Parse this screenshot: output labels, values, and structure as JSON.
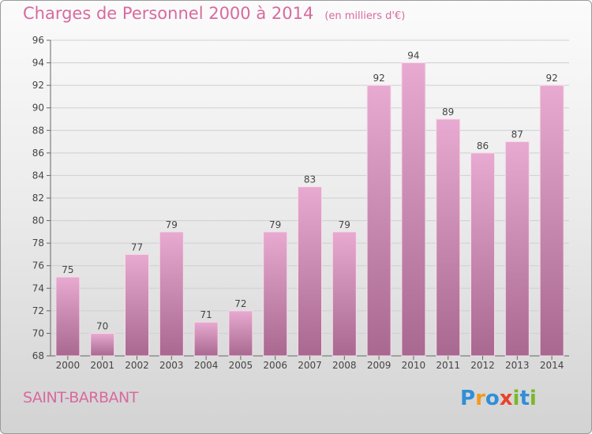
{
  "title": "Charges de Personnel 2000 à 2014",
  "unit": "(en milliers d'€)",
  "place": "SAINT-BARBANT",
  "logo": {
    "text": "Proxiti",
    "letters": [
      "P",
      "r",
      "o",
      "x",
      "i",
      "t",
      "i"
    ],
    "colors": [
      "#2f8fd8",
      "#f29a1e",
      "#2f8fd8",
      "#e8432a",
      "#7ab829",
      "#2f8fd8",
      "#7ab829"
    ]
  },
  "colors": {
    "title": "#d86a9e",
    "bar_top": "#e8aad0",
    "bar_bottom": "#a86890",
    "grid": "#cfcfcf"
  },
  "chart_data": {
    "type": "bar",
    "categories": [
      "2000",
      "2001",
      "2002",
      "2003",
      "2004",
      "2005",
      "2006",
      "2007",
      "2008",
      "2009",
      "2010",
      "2011",
      "2012",
      "2013",
      "2014"
    ],
    "values": [
      75,
      70,
      77,
      79,
      71,
      72,
      79,
      83,
      79,
      92,
      94,
      89,
      86,
      87,
      92
    ],
    "ylim": [
      68,
      96
    ],
    "yticks": [
      68,
      70,
      72,
      74,
      76,
      78,
      80,
      82,
      84,
      86,
      88,
      90,
      92,
      94,
      96
    ],
    "grid": true,
    "title": "Charges de Personnel 2000 à 2014",
    "xlabel": "",
    "ylabel": ""
  }
}
